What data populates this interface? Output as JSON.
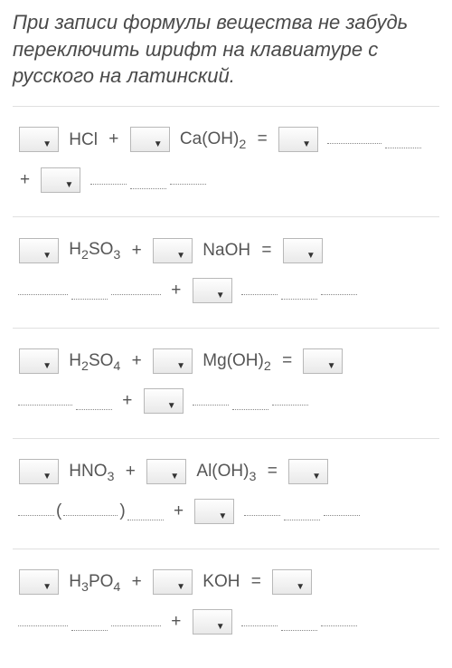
{
  "instruction": "При записи формулы вещества не забудь переключить шрифт на клавиатуре с русского на латинский.",
  "equations": [
    {
      "r1": "HCl",
      "r2": "Ca(OH)",
      "r2sub": "2",
      "has_paren_product": false
    },
    {
      "r1": "H2SO3",
      "r2": "NaOH",
      "r2sub": "",
      "has_paren_product": false
    },
    {
      "r1": "H2SO4",
      "r2": "Mg(OH)",
      "r2sub": "2",
      "has_paren_product": false
    },
    {
      "r1": "HNO3",
      "r2": "Al(OH)",
      "r2sub": "3",
      "has_paren_product": true
    },
    {
      "r1": "H3PO4",
      "r2": "KOH",
      "r2sub": "",
      "has_paren_product": false
    }
  ],
  "symbols": {
    "plus": "+",
    "equals": "="
  },
  "colors": {
    "text": "#4a4a4a",
    "border": "#e0e0e0",
    "dropdown_border": "#b8b8b8",
    "dotted": "#888888",
    "background": "#ffffff"
  },
  "fontsize": {
    "instruction": 22,
    "equation": 19
  }
}
